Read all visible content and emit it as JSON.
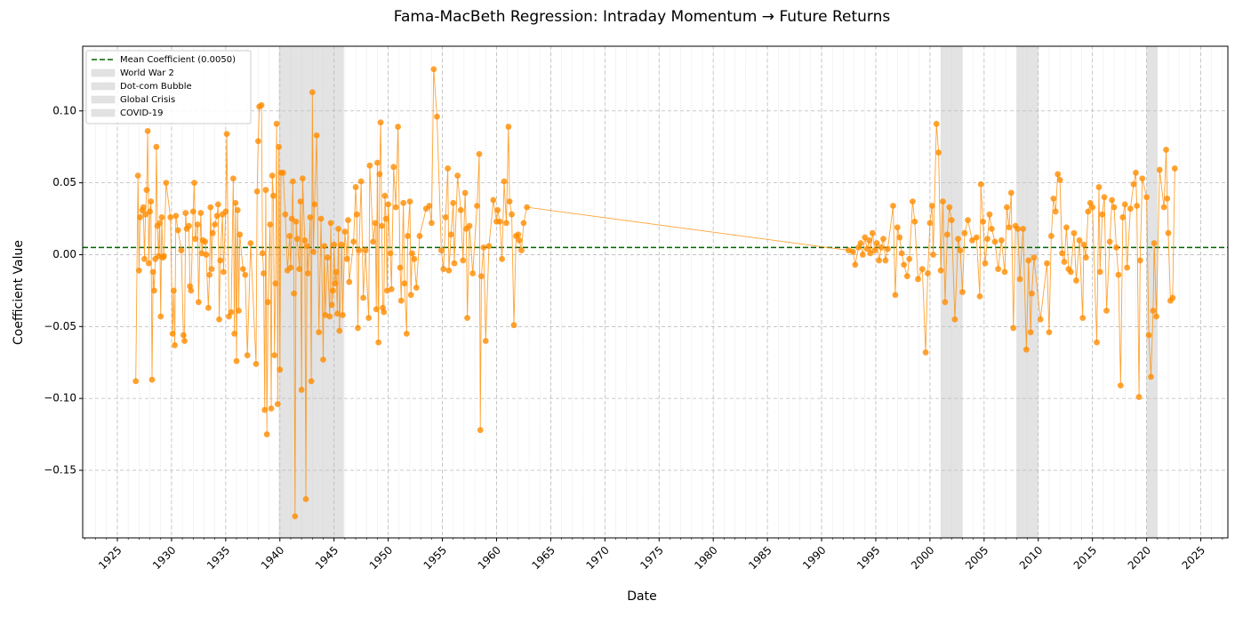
{
  "chart_data": {
    "type": "line",
    "title": "Fama-MacBeth Regression: Intraday Momentum → Future Returns",
    "x_label": "Date",
    "y_label": "Coefficient Value",
    "xlim": [
      1921.8,
      2027.5
    ],
    "ylim": [
      -0.197,
      0.145
    ],
    "xticks": [
      1925,
      1930,
      1935,
      1940,
      1945,
      1950,
      1955,
      1960,
      1965,
      1970,
      1975,
      1980,
      1985,
      1990,
      1995,
      2000,
      2005,
      2010,
      2015,
      2020,
      2025
    ],
    "xminorticks": [
      1922,
      1923,
      1924,
      1925,
      1926,
      1927,
      1928,
      1929,
      1930,
      1931,
      1932,
      1933,
      1934,
      1935,
      1936,
      1937,
      1938,
      1939,
      1940,
      1941,
      1942,
      1943,
      1944,
      1945,
      1946,
      1947,
      1948,
      1949,
      1950,
      1951,
      1952,
      1953,
      1954,
      1955,
      1956,
      1957,
      1958,
      1959,
      1960,
      1961,
      1962,
      1963,
      1964,
      1965,
      1966,
      1967,
      1968,
      1969,
      1970,
      1971,
      1972,
      1973,
      1974,
      1975,
      1976,
      1977,
      1978,
      1979,
      1980,
      1981,
      1982,
      1983,
      1984,
      1985,
      1986,
      1987,
      1988,
      1989,
      1990,
      1991,
      1992,
      1993,
      1994,
      1995,
      1996,
      1997,
      1998,
      1999,
      2000,
      2001,
      2002,
      2003,
      2004,
      2005,
      2006,
      2007,
      2008,
      2009,
      2010,
      2011,
      2012,
      2013,
      2014,
      2015,
      2016,
      2017,
      2018,
      2019,
      2020,
      2021,
      2022,
      2023,
      2024,
      2025,
      2026,
      2027
    ],
    "yticks": [
      {
        "value": -0.15,
        "label": "−0.15"
      },
      {
        "value": -0.1,
        "label": "−0.10"
      },
      {
        "value": -0.05,
        "label": "−0.05"
      },
      {
        "value": 0,
        "label": "0.00"
      },
      {
        "value": 0.05,
        "label": "0.05"
      },
      {
        "value": 0.1,
        "label": "0.10"
      }
    ],
    "grid": true,
    "legend": "upper left",
    "mean_line": {
      "name": "Mean Coefficient (0.0050)",
      "value": 0.005,
      "color": "#006400"
    },
    "shaded_regions": [
      {
        "name": "World War 2",
        "start": 1939.9,
        "end": 1945.9,
        "color": "#cccccc"
      },
      {
        "name": "Dot-com Bubble",
        "start": 2001.0,
        "end": 2003.0,
        "color": "#cccccc"
      },
      {
        "name": "Global Crisis",
        "start": 2008.0,
        "end": 2010.0,
        "color": "#cccccc"
      },
      {
        "name": "COVID-19",
        "start": 2020.0,
        "end": 2021.0,
        "color": "#cccccc"
      }
    ],
    "x": [
      1926.7,
      1926.9,
      1927.0,
      1927.1,
      1927.3,
      1927.4,
      1927.5,
      1927.6,
      1927.7,
      1927.8,
      1927.9,
      1928.0,
      1928.1,
      1928.2,
      1928.3,
      1928.4,
      1928.5,
      1928.6,
      1928.7,
      1928.8,
      1928.9,
      1929.0,
      1929.1,
      1929.2,
      1929.3,
      1929.5,
      1929.9,
      1930.1,
      1930.2,
      1930.3,
      1930.4,
      1930.6,
      1930.9,
      1931.1,
      1931.2,
      1931.3,
      1931.4,
      1931.6,
      1931.7,
      1931.8,
      1932.0,
      1932.1,
      1932.2,
      1932.4,
      1932.5,
      1932.7,
      1932.8,
      1932.9,
      1933.1,
      1933.2,
      1933.4,
      1933.5,
      1933.6,
      1933.7,
      1933.8,
      1934.0,
      1934.2,
      1934.3,
      1934.4,
      1934.5,
      1934.7,
      1934.8,
      1935.0,
      1935.1,
      1935.3,
      1935.5,
      1935.7,
      1935.8,
      1935.9,
      1936.0,
      1936.1,
      1936.2,
      1936.3,
      1936.6,
      1936.8,
      1937.0,
      1937.3,
      1937.8,
      1937.9,
      1938.0,
      1938.1,
      1938.3,
      1938.4,
      1938.5,
      1938.6,
      1938.7,
      1938.8,
      1938.9,
      1939.1,
      1939.2,
      1939.3,
      1939.4,
      1939.5,
      1939.6,
      1939.7,
      1939.8,
      1939.9,
      1940.0,
      1940.1,
      1940.3,
      1940.5,
      1940.7,
      1940.9,
      1941.0,
      1941.1,
      1941.2,
      1941.3,
      1941.4,
      1941.5,
      1941.6,
      1941.8,
      1941.9,
      1942.0,
      1942.1,
      1942.3,
      1942.4,
      1942.5,
      1942.6,
      1942.8,
      1942.9,
      1943.0,
      1943.1,
      1943.2,
      1943.4,
      1943.6,
      1943.8,
      1944.0,
      1944.1,
      1944.2,
      1944.4,
      1944.6,
      1944.7,
      1944.8,
      1944.9,
      1945.0,
      1945.1,
      1945.2,
      1945.3,
      1945.4,
      1945.5,
      1945.7,
      1945.8,
      1946.0,
      1946.2,
      1946.3,
      1946.4,
      1946.8,
      1947.0,
      1947.1,
      1947.2,
      1947.3,
      1947.5,
      1947.7,
      1947.9,
      1948.2,
      1948.3,
      1948.6,
      1948.8,
      1948.9,
      1949.0,
      1949.1,
      1949.2,
      1949.3,
      1949.4,
      1949.5,
      1949.6,
      1949.7,
      1949.8,
      1949.9,
      1950.0,
      1950.2,
      1950.3,
      1950.5,
      1950.7,
      1950.9,
      1951.1,
      1951.2,
      1951.4,
      1951.5,
      1951.7,
      1951.8,
      1952.0,
      1952.1,
      1952.2,
      1952.4,
      1952.6,
      1952.9,
      1953.5,
      1953.8,
      1954.0,
      1954.2,
      1954.5,
      1954.9,
      1955.1,
      1955.3,
      1955.5,
      1955.6,
      1955.8,
      1956.0,
      1956.1,
      1956.4,
      1956.7,
      1956.9,
      1957.1,
      1957.2,
      1957.3,
      1957.5,
      1957.8,
      1958.2,
      1958.4,
      1958.5,
      1958.6,
      1958.8,
      1959.0,
      1959.3,
      1959.7,
      1960.0,
      1960.1,
      1960.3,
      1960.5,
      1960.7,
      1960.9,
      1961.1,
      1961.2,
      1961.4,
      1961.6,
      1961.8,
      1962.0,
      1962.1,
      1962.3,
      1962.5,
      1962.8,
      1992.5,
      1992.9,
      1993.1,
      1993.4,
      1993.6,
      1993.8,
      1994.0,
      1994.2,
      1994.4,
      1994.5,
      1994.7,
      1994.9,
      1995.1,
      1995.3,
      1995.5,
      1995.7,
      1995.9,
      1996.1,
      1996.6,
      1996.8,
      1997.0,
      1997.2,
      1997.4,
      1997.6,
      1997.9,
      1998.1,
      1998.4,
      1998.6,
      1998.9,
      1999.3,
      1999.6,
      1999.8,
      2000.0,
      2000.2,
      2000.3,
      2000.6,
      2000.8,
      2001.0,
      2001.2,
      2001.4,
      2001.6,
      2001.8,
      2002.0,
      2002.3,
      2002.6,
      2002.8,
      2003.0,
      2003.2,
      2003.5,
      2003.9,
      2004.3,
      2004.6,
      2004.7,
      2004.9,
      2005.1,
      2005.3,
      2005.5,
      2005.7,
      2006.0,
      2006.3,
      2006.6,
      2006.9,
      2007.1,
      2007.3,
      2007.5,
      2007.7,
      2007.9,
      2008.1,
      2008.3,
      2008.6,
      2008.9,
      2009.1,
      2009.3,
      2009.4,
      2009.6,
      2010.2,
      2010.8,
      2011.0,
      2011.2,
      2011.4,
      2011.6,
      2011.8,
      2012.0,
      2012.2,
      2012.4,
      2012.6,
      2012.8,
      2013.0,
      2013.3,
      2013.5,
      2013.8,
      2014.1,
      2014.2,
      2014.4,
      2014.6,
      2014.8,
      2015.0,
      2015.4,
      2015.6,
      2015.7,
      2015.9,
      2016.1,
      2016.3,
      2016.6,
      2016.8,
      2017.0,
      2017.2,
      2017.4,
      2017.6,
      2017.8,
      2018.0,
      2018.2,
      2018.5,
      2018.8,
      2019.0,
      2019.1,
      2019.3,
      2019.4,
      2019.6,
      2020.0,
      2020.2,
      2020.4,
      2020.6,
      2020.7,
      2020.9,
      2021.2,
      2021.6,
      2021.8,
      2021.9,
      2022.0,
      2022.2,
      2022.4,
      2022.6
    ],
    "series": [
      {
        "color": "#ff8c00",
        "values": [
          -0.088,
          0.055,
          -0.011,
          0.026,
          0.031,
          0.033,
          -0.003,
          0.028,
          0.045,
          0.086,
          -0.006,
          0.03,
          0.037,
          -0.087,
          -0.012,
          -0.025,
          -0.003,
          0.075,
          0.02,
          -0.001,
          0.022,
          -0.043,
          0.026,
          -0.002,
          -0.001,
          0.05,
          0.026,
          -0.055,
          -0.025,
          -0.063,
          0.027,
          0.017,
          0.003,
          -0.056,
          -0.06,
          0.029,
          0.018,
          0.02,
          -0.022,
          -0.025,
          0.03,
          0.05,
          0.011,
          0.021,
          -0.033,
          0.029,
          0.001,
          0.01,
          0.009,
          0.0,
          -0.037,
          -0.014,
          0.033,
          -0.01,
          0.015,
          0.021,
          0.027,
          0.035,
          -0.045,
          -0.004,
          0.028,
          -0.012,
          0.03,
          0.084,
          -0.043,
          -0.04,
          0.053,
          -0.055,
          0.036,
          -0.074,
          0.031,
          -0.039,
          0.014,
          -0.01,
          -0.014,
          -0.07,
          0.008,
          -0.076,
          0.044,
          0.079,
          0.103,
          0.104,
          0.001,
          -0.013,
          -0.108,
          0.045,
          -0.125,
          -0.033,
          0.021,
          -0.107,
          0.055,
          0.041,
          -0.07,
          -0.02,
          0.091,
          -0.104,
          0.075,
          -0.08,
          0.057,
          0.057,
          0.028,
          -0.011,
          0.013,
          -0.009,
          0.025,
          0.051,
          -0.027,
          -0.182,
          0.023,
          0.011,
          -0.01,
          0.037,
          -0.094,
          0.053,
          0.01,
          -0.17,
          0.006,
          -0.013,
          0.026,
          -0.088,
          0.113,
          0.002,
          0.035,
          0.083,
          -0.054,
          0.025,
          -0.073,
          0.006,
          -0.042,
          -0.002,
          -0.043,
          0.022,
          -0.035,
          -0.025,
          0.007,
          -0.02,
          -0.012,
          -0.041,
          0.018,
          -0.053,
          0.007,
          -0.042,
          0.016,
          -0.003,
          0.024,
          -0.019,
          0.009,
          0.047,
          0.028,
          -0.051,
          0.003,
          0.051,
          -0.03,
          0.003,
          -0.044,
          0.062,
          0.009,
          0.022,
          -0.038,
          0.064,
          -0.061,
          0.056,
          0.092,
          0.02,
          -0.037,
          -0.04,
          0.041,
          0.025,
          -0.025,
          0.035,
          0.001,
          -0.024,
          0.061,
          0.033,
          0.089,
          -0.009,
          -0.032,
          0.036,
          -0.02,
          -0.055,
          0.013,
          0.037,
          -0.028,
          0.001,
          -0.003,
          -0.023,
          0.013,
          0.032,
          0.034,
          0.022,
          0.129,
          0.096,
          0.003,
          -0.01,
          0.026,
          0.06,
          -0.011,
          0.014,
          0.036,
          -0.006,
          0.055,
          0.031,
          -0.004,
          0.043,
          0.018,
          -0.044,
          0.02,
          -0.013,
          0.034,
          0.07,
          -0.122,
          -0.015,
          0.005,
          -0.06,
          0.006,
          0.038,
          0.023,
          0.031,
          0.023,
          -0.003,
          0.051,
          0.022,
          0.089,
          0.037,
          0.028,
          -0.049,
          0.013,
          0.014,
          0.01,
          0.003,
          0.022,
          0.033,
          0.003,
          0.002,
          -0.007,
          0.005,
          0.008,
          0.0,
          0.012,
          0.004,
          0.01,
          0.001,
          0.015,
          0.003,
          0.008,
          -0.004,
          0.005,
          0.011,
          -0.004,
          0.004,
          0.034,
          -0.028,
          0.019,
          0.012,
          0.001,
          -0.007,
          -0.015,
          -0.003,
          0.037,
          0.023,
          -0.017,
          -0.01,
          -0.068,
          -0.013,
          0.022,
          0.034,
          0.0,
          0.091,
          0.071,
          -0.011,
          0.037,
          -0.033,
          0.014,
          0.033,
          0.024,
          -0.045,
          0.011,
          0.003,
          -0.026,
          0.015,
          0.024,
          0.01,
          0.012,
          -0.029,
          0.049,
          0.023,
          -0.006,
          0.011,
          0.028,
          0.018,
          0.009,
          -0.01,
          0.01,
          -0.012,
          0.033,
          0.019,
          0.043,
          -0.051,
          0.02,
          0.018,
          -0.017,
          0.018,
          -0.066,
          -0.004,
          -0.054,
          -0.027,
          -0.002,
          -0.045,
          -0.006,
          -0.054,
          0.013,
          0.039,
          0.03,
          0.056,
          0.052,
          0.001,
          -0.005,
          0.019,
          -0.01,
          -0.012,
          0.015,
          -0.018,
          0.01,
          -0.044,
          0.007,
          -0.002,
          0.03,
          0.036,
          0.033,
          -0.061,
          0.047,
          -0.012,
          0.028,
          0.04,
          -0.039,
          0.009,
          0.038,
          0.033,
          0.005,
          -0.014,
          -0.091,
          0.026,
          0.035,
          -0.009,
          0.032,
          0.049,
          0.057,
          0.034,
          -0.099,
          -0.004,
          0.053,
          0.04,
          -0.056,
          -0.085,
          -0.039,
          0.008,
          -0.043,
          0.059,
          0.033,
          0.073,
          0.039,
          0.015,
          -0.032,
          -0.03,
          0.06
        ]
      }
    ]
  }
}
